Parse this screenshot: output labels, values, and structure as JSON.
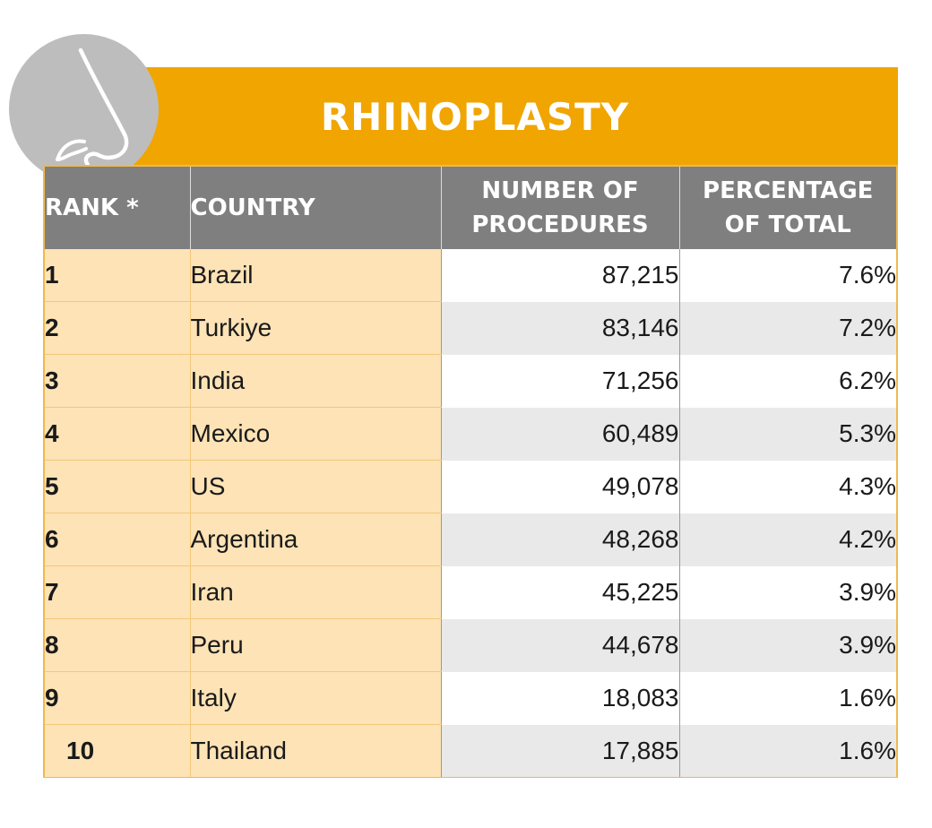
{
  "title": "RHINOPLASTY",
  "badge_icon": "nose-icon",
  "colors": {
    "title_bar": "#f0a500",
    "header_bg": "#7f7f7f",
    "highlight_column": "#fde3b6",
    "stripe": "#e9e9e9",
    "badge": "#bdbdbd"
  },
  "chart_data": {
    "type": "table",
    "title": "RHINOPLASTY",
    "columns": [
      "RANK *",
      "COUNTRY",
      "NUMBER OF PROCEDURES",
      "PERCENTAGE OF TOTAL"
    ],
    "header_lines": {
      "rank": [
        "RANK *"
      ],
      "country": [
        "COUNTRY"
      ],
      "procedures": [
        "NUMBER OF",
        "PROCEDURES"
      ],
      "percentage": [
        "PERCENTAGE",
        "OF TOTAL"
      ]
    },
    "rows": [
      {
        "rank": "1",
        "country": "Brazil",
        "procedures": "87,215",
        "percentage": "7.6%"
      },
      {
        "rank": "2",
        "country": "Turkiye",
        "procedures": "83,146",
        "percentage": "7.2%"
      },
      {
        "rank": "3",
        "country": "India",
        "procedures": "71,256",
        "percentage": "6.2%"
      },
      {
        "rank": "4",
        "country": "Mexico",
        "procedures": "60,489",
        "percentage": "5.3%"
      },
      {
        "rank": "5",
        "country": "US",
        "procedures": "49,078",
        "percentage": "4.3%"
      },
      {
        "rank": "6",
        "country": "Argentina",
        "procedures": "48,268",
        "percentage": "4.2%"
      },
      {
        "rank": "7",
        "country": "Iran",
        "procedures": "45,225",
        "percentage": "3.9%"
      },
      {
        "rank": "8",
        "country": "Peru",
        "procedures": "44,678",
        "percentage": "3.9%"
      },
      {
        "rank": "9",
        "country": "Italy",
        "procedures": "18,083",
        "percentage": "1.6%"
      },
      {
        "rank": "10",
        "country": "Thailand",
        "procedures": "17,885",
        "percentage": "1.6%"
      }
    ]
  }
}
